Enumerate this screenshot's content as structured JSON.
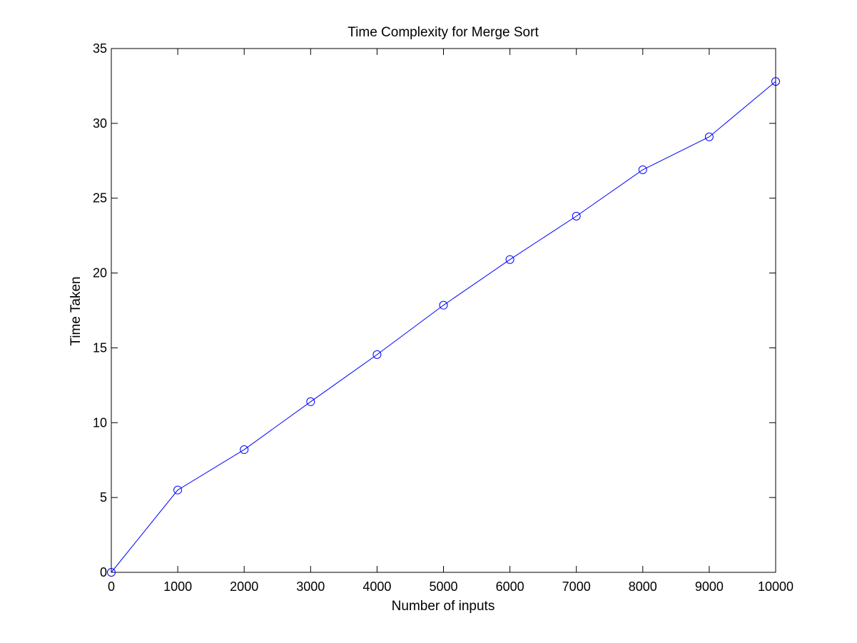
{
  "chart_data": {
    "type": "line",
    "title": "Time Complexity for Merge Sort",
    "xlabel": "Number of inputs",
    "ylabel": "Time Taken",
    "xlim": [
      0,
      10000
    ],
    "ylim": [
      0,
      35
    ],
    "grid": false,
    "marker": "circle",
    "colors": {
      "series": "#0000ff",
      "axes": "#000000",
      "background": "#ffffff"
    },
    "x_ticks": [
      0,
      1000,
      2000,
      3000,
      4000,
      5000,
      6000,
      7000,
      8000,
      9000,
      10000
    ],
    "y_ticks": [
      0,
      5,
      10,
      15,
      20,
      25,
      30,
      35
    ],
    "x_tick_labels": [
      "0",
      "1000",
      "2000",
      "3000",
      "4000",
      "5000",
      "6000",
      "7000",
      "8000",
      "9000",
      "10000"
    ],
    "y_tick_labels": [
      "0",
      "5",
      "10",
      "15",
      "20",
      "25",
      "30",
      "35"
    ],
    "series": [
      {
        "x": [
          0,
          1000,
          2000,
          3000,
          4000,
          5000,
          6000,
          7000,
          8000,
          9000,
          10000
        ],
        "y": [
          0,
          5.5,
          8.2,
          11.4,
          14.55,
          17.85,
          20.9,
          23.8,
          26.9,
          29.1,
          32.8
        ]
      }
    ]
  }
}
